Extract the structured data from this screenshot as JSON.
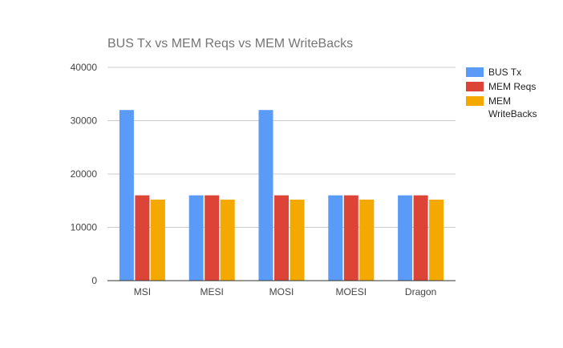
{
  "chart_data": {
    "type": "bar",
    "title": "BUS Tx vs MEM Reqs vs MEM WriteBacks",
    "xlabel": "",
    "ylabel": "",
    "categories": [
      "MSI",
      "MESI",
      "MOSI",
      "MOESI",
      "Dragon"
    ],
    "series": [
      {
        "name": "BUS Tx",
        "color": "#5b9bf8",
        "values": [
          32000,
          16000,
          32000,
          16000,
          16000
        ]
      },
      {
        "name": "MEM Reqs",
        "color": "#db4437",
        "values": [
          16000,
          16000,
          16000,
          16000,
          16000
        ]
      },
      {
        "name": "MEM WriteBacks",
        "color": "#f4a900",
        "values": [
          15200,
          15200,
          15200,
          15200,
          15200
        ]
      }
    ],
    "ylim": [
      0,
      40000
    ],
    "yticks": [
      "0",
      "10000",
      "20000",
      "30000",
      "40000"
    ],
    "grid": true,
    "legend_position": "right"
  }
}
